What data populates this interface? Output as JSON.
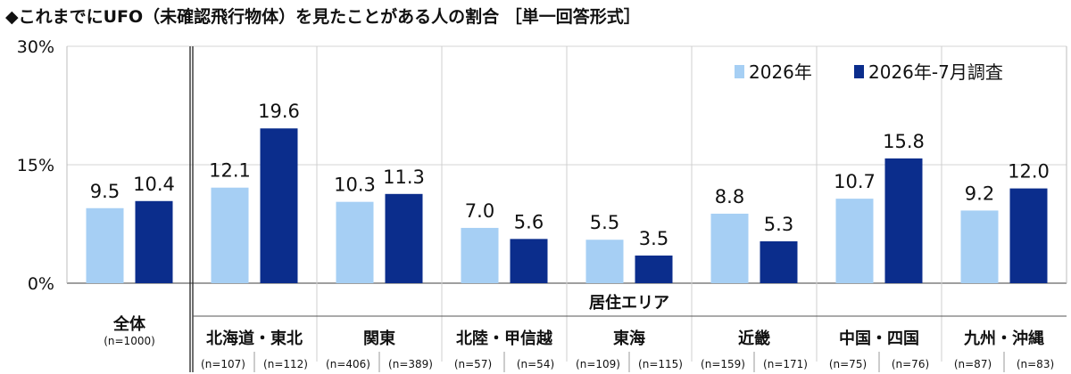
{
  "chart_data": {
    "type": "bar",
    "title": "◆これまでにUFO（未確認飛行物体）を見たことがある人の割合 ［単一回答形式］",
    "ylim": [
      0,
      30
    ],
    "yticks": [
      "0%",
      "15%",
      "30%"
    ],
    "grid": true,
    "legend_position": "top-right",
    "colors": {
      "light": "#a6cff4",
      "dark": "#0b2d8c"
    },
    "area_label": "居住エリア",
    "series": [
      {
        "name": "2026年",
        "values": [
          9.5,
          12.1,
          10.3,
          7.0,
          5.5,
          8.8,
          10.7,
          9.2
        ],
        "labels": [
          "9.5",
          "12.1",
          "10.3",
          "7.0",
          "5.5",
          "8.8",
          "10.7",
          "9.2"
        ]
      },
      {
        "name": "2026年-7月調査",
        "values": [
          10.4,
          19.6,
          11.3,
          5.6,
          3.5,
          5.3,
          15.8,
          12.0
        ],
        "labels": [
          "10.4",
          "19.6",
          "11.3",
          "5.6",
          "3.5",
          "5.3",
          "15.8",
          "12.0"
        ]
      }
    ],
    "categories": [
      {
        "label": "全体",
        "n": [
          "(n=1000)"
        ]
      },
      {
        "label": "北海道・東北",
        "n": [
          "(n=107)",
          "(n=112)"
        ]
      },
      {
        "label": "関東",
        "n": [
          "(n=406)",
          "(n=389)"
        ]
      },
      {
        "label": "北陸・甲信越",
        "n": [
          "(n=57)",
          "(n=54)"
        ]
      },
      {
        "label": "東海",
        "n": [
          "(n=109)",
          "(n=115)"
        ]
      },
      {
        "label": "近畿",
        "n": [
          "(n=159)",
          "(n=171)"
        ]
      },
      {
        "label": "中国・四国",
        "n": [
          "(n=75)",
          "(n=76)"
        ]
      },
      {
        "label": "九州・沖縄",
        "n": [
          "(n=87)",
          "(n=83)"
        ]
      }
    ]
  }
}
